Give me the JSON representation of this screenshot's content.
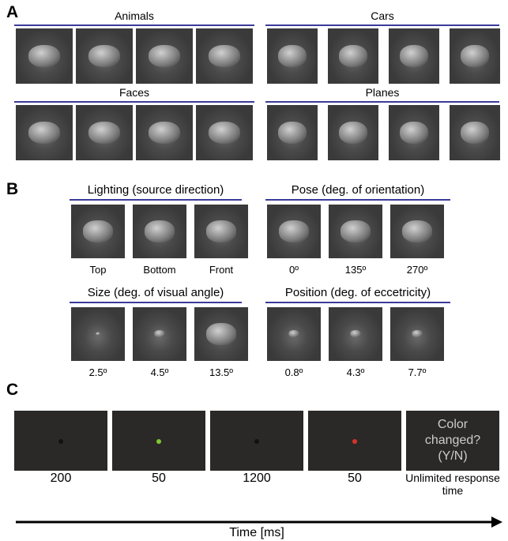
{
  "panel_a": {
    "label": "A",
    "groups": [
      {
        "title": "Animals"
      },
      {
        "title": "Cars"
      },
      {
        "title": "Faces"
      },
      {
        "title": "Planes"
      }
    ]
  },
  "panel_b": {
    "label": "B",
    "groups": [
      {
        "title": "Lighting (source direction)",
        "captions": [
          "Top",
          "Bottom",
          "Front"
        ]
      },
      {
        "title": "Pose (deg. of orientation)",
        "captions": [
          "0º",
          "135º",
          "270º"
        ]
      },
      {
        "title": "Size (deg. of visual angle)",
        "captions": [
          "2.5º",
          "4.5º",
          "13.5º"
        ]
      },
      {
        "title": "Position (deg. of eccetricity)",
        "captions": [
          "0.8º",
          "4.3º",
          "7.7º"
        ]
      }
    ]
  },
  "panel_c": {
    "label": "C",
    "frames": [
      {
        "duration": "200"
      },
      {
        "duration": "50"
      },
      {
        "duration": "1200"
      },
      {
        "duration": "50"
      },
      {
        "duration": "Unlimited response time",
        "text": "Color changed? (Y/N)"
      }
    ],
    "axis_label": "Time [ms]"
  }
}
